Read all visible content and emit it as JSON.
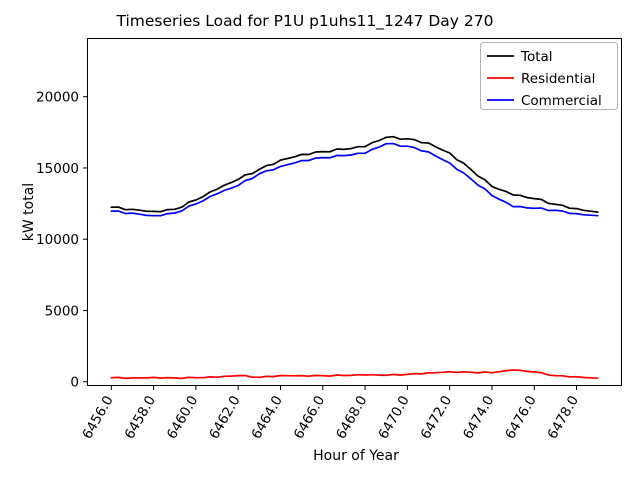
{
  "figure": {
    "background": "#ffffff",
    "axes_frame_color": "#000000",
    "legend_border_color": "#b3b3b3"
  },
  "chart_data": {
    "type": "line",
    "title": "Timeseries Load for P1U p1uhs11_1247  Day 270",
    "xlabel": "Hour of Year",
    "ylabel": "kW total",
    "grid": false,
    "legend_position": "upper right",
    "xlim": [
      6454.85,
      6480.15
    ],
    "ylim": [
      -300,
      24120
    ],
    "xtick_labels": [
      "6456.0",
      "6458.0",
      "6460.0",
      "6462.0",
      "6464.0",
      "6466.0",
      "6468.0",
      "6470.0",
      "6472.0",
      "6474.0",
      "6476.0",
      "6478.0"
    ],
    "xticks": [
      6456,
      6458,
      6460,
      6462,
      6464,
      6466,
      6468,
      6470,
      6472,
      6474,
      6476,
      6478
    ],
    "ytick_labels": [
      "0",
      "5000",
      "10000",
      "15000",
      "20000"
    ],
    "yticks": [
      0,
      5000,
      10000,
      15000,
      20000
    ],
    "x": [
      6456,
      6457,
      6458,
      6459,
      6460,
      6461,
      6462,
      6463,
      6464,
      6465,
      6466,
      6467,
      6468,
      6469,
      6470,
      6471,
      6472,
      6473,
      6474,
      6475,
      6476,
      6477,
      6478,
      6479
    ],
    "series": [
      {
        "name": "Total",
        "color": "#000000",
        "values": [
          12250,
          12100,
          11950,
          12100,
          12750,
          13500,
          14200,
          14900,
          15550,
          15950,
          16150,
          16300,
          16500,
          17150,
          17050,
          16750,
          16050,
          14900,
          13700,
          13100,
          12850,
          12450,
          12150,
          11900
        ]
      },
      {
        "name": "Residential",
        "color": "#ff0000",
        "values": [
          280,
          270,
          300,
          260,
          280,
          320,
          430,
          310,
          440,
          430,
          420,
          440,
          470,
          450,
          520,
          620,
          700,
          660,
          630,
          820,
          680,
          420,
          350,
          250
        ]
      },
      {
        "name": "Commercial",
        "color": "#0000ff",
        "values": [
          11970,
          11830,
          11650,
          11840,
          12470,
          13180,
          13770,
          14590,
          15110,
          15520,
          15730,
          15860,
          16030,
          16700,
          16530,
          16130,
          15350,
          14240,
          13070,
          12280,
          12170,
          12030,
          11800,
          11650
        ]
      }
    ]
  }
}
